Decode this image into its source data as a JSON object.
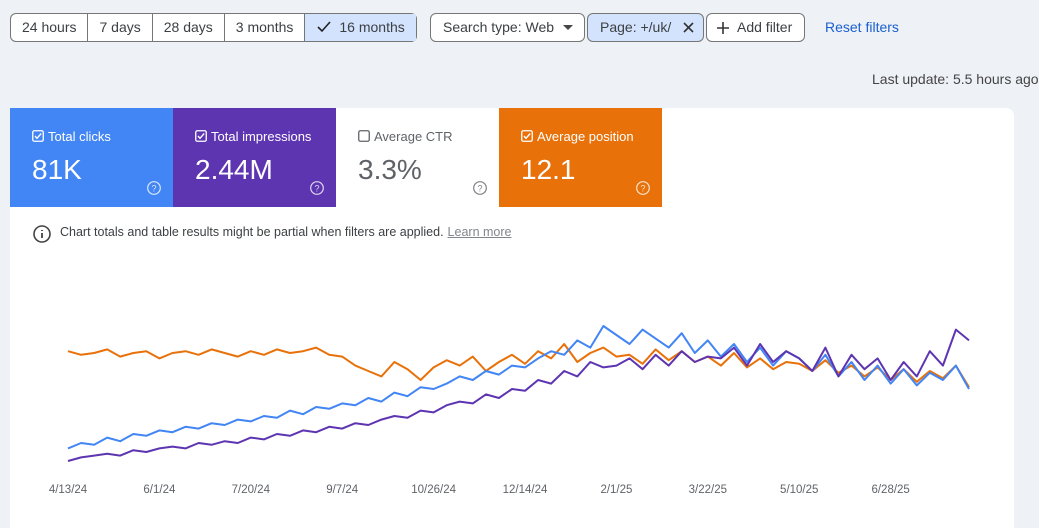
{
  "date_ranges": [
    "24 hours",
    "7 days",
    "28 days",
    "3 months",
    "16 months"
  ],
  "selected_range": 4,
  "filters": {
    "search_type": "Search type: Web",
    "page": "Page: +/uk/",
    "add": "Add filter",
    "reset": "Reset filters"
  },
  "last_update": "Last update: 5.5 hours ago",
  "metrics": [
    {
      "label": "Total clicks",
      "value": "81K",
      "checked": true,
      "color": "#4285f4"
    },
    {
      "label": "Total impressions",
      "value": "2.44M",
      "checked": true,
      "color": "#5e35b1"
    },
    {
      "label": "Average CTR",
      "value": "3.3%",
      "checked": false,
      "color": "#ffffff"
    },
    {
      "label": "Average position",
      "value": "12.1",
      "checked": true,
      "color": "#e8710a"
    }
  ],
  "notice": {
    "text": "Chart totals and table results might be partial when filters are applied.",
    "link": "Learn more"
  },
  "chart_data": {
    "type": "line",
    "x": [
      "4/13/24",
      "4/20/24",
      "4/27/24",
      "5/4/24",
      "5/11/24",
      "5/18/24",
      "5/25/24",
      "6/1/24",
      "6/8/24",
      "6/15/24",
      "6/22/24",
      "6/29/24",
      "7/6/24",
      "7/13/24",
      "7/20/24",
      "7/27/24",
      "8/3/24",
      "8/10/24",
      "8/17/24",
      "8/24/24",
      "8/31/24",
      "9/7/24",
      "9/14/24",
      "9/21/24",
      "9/28/24",
      "10/5/24",
      "10/12/24",
      "10/19/24",
      "10/26/24",
      "11/2/24",
      "11/9/24",
      "11/16/24",
      "11/23/24",
      "11/30/24",
      "12/7/24",
      "12/14/24",
      "12/21/24",
      "12/28/24",
      "1/4/25",
      "1/11/25",
      "1/18/25",
      "1/25/25",
      "2/1/25",
      "2/8/25",
      "2/15/25",
      "2/22/25",
      "3/1/25",
      "3/8/25",
      "3/15/25",
      "3/22/25",
      "3/29/25",
      "4/5/25",
      "4/12/25",
      "4/19/25",
      "4/26/25",
      "5/3/25",
      "5/10/25",
      "5/17/25",
      "5/24/25",
      "5/31/25",
      "6/7/25",
      "6/14/25",
      "6/21/25",
      "6/28/25",
      "7/5/25",
      "7/12/25",
      "7/19/25",
      "7/26/25",
      "8/2/25",
      "8/9/25"
    ],
    "xticks": [
      "4/13/24",
      "6/1/24",
      "7/20/24",
      "9/7/24",
      "10/26/24",
      "12/14/24",
      "2/1/25",
      "3/22/25",
      "5/10/25",
      "6/28/25"
    ],
    "ylim": [
      0,
      100
    ],
    "series": [
      {
        "color": "#e8710a",
        "values": [
          66,
          64,
          65,
          67,
          63,
          65,
          66,
          62,
          65,
          66,
          64,
          67,
          65,
          63,
          66,
          64,
          67,
          65,
          66,
          68,
          64,
          63,
          58,
          55,
          52,
          60,
          56,
          50,
          57,
          61,
          58,
          63,
          55,
          60,
          64,
          59,
          66,
          62,
          70,
          60,
          65,
          68,
          63,
          64,
          59,
          67,
          61,
          66,
          60,
          63,
          58,
          65,
          57,
          62,
          56,
          60,
          59,
          55,
          61,
          54,
          58,
          52,
          57,
          50,
          56,
          49,
          55,
          51,
          58,
          46
        ]
      },
      {
        "color": "#4285f4",
        "values": [
          12,
          15,
          14,
          18,
          16,
          20,
          19,
          22,
          21,
          24,
          23,
          26,
          25,
          28,
          27,
          30,
          29,
          33,
          31,
          35,
          34,
          37,
          36,
          40,
          38,
          43,
          41,
          46,
          45,
          48,
          52,
          50,
          55,
          53,
          58,
          57,
          62,
          66,
          64,
          72,
          68,
          80,
          75,
          70,
          78,
          73,
          68,
          76,
          65,
          72,
          63,
          70,
          60,
          68,
          58,
          66,
          62,
          55,
          64,
          52,
          60,
          50,
          58,
          48,
          56,
          47,
          54,
          50,
          58,
          45
        ]
      },
      {
        "color": "#5e35b1",
        "values": [
          5,
          7,
          8,
          9,
          8,
          11,
          10,
          12,
          13,
          12,
          15,
          14,
          16,
          15,
          18,
          17,
          20,
          19,
          22,
          21,
          24,
          23,
          26,
          25,
          28,
          30,
          29,
          33,
          32,
          36,
          38,
          37,
          42,
          40,
          45,
          44,
          50,
          48,
          55,
          52,
          60,
          57,
          58,
          62,
          56,
          64,
          58,
          66,
          60,
          63,
          62,
          68,
          58,
          70,
          60,
          66,
          62,
          55,
          68,
          52,
          64,
          56,
          62,
          50,
          60,
          52,
          66,
          58,
          78,
          72
        ]
      }
    ]
  }
}
